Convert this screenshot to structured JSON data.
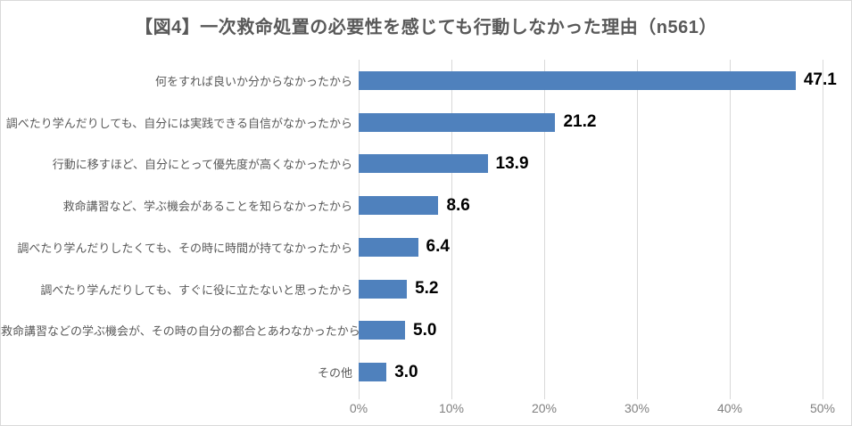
{
  "chart_data": {
    "type": "bar",
    "orientation": "horizontal",
    "title": "【図4】一次救命処置の必要性を感じても行動しなかった理由（n561）",
    "categories": [
      "何をすれば良いか分からなかったから",
      "調べたり学んだりしても、自分には実践できる自信がなかったから",
      "行動に移すほど、自分にとって優先度が高くなかったから",
      "救命講習など、学ぶ機会があることを知らなかったから",
      "調べたり学んだりしたくても、その時に時間が持てなかったから",
      "調べたり学んだりしても、すぐに役に立たないと思ったから",
      "救命講習などの学ぶ機会が、その時の自分の都合とあわなかったから",
      "その他"
    ],
    "values": [
      47.1,
      21.2,
      13.9,
      8.6,
      6.4,
      5.2,
      5.0,
      3.0
    ],
    "value_labels": [
      "47.1",
      "21.2",
      "13.9",
      "8.6",
      "6.4",
      "5.2",
      "5.0",
      "3.0"
    ],
    "xlabel": "",
    "ylabel": "",
    "xlim": [
      0,
      50
    ],
    "x_tick_labels": [
      "0%",
      "10%",
      "20%",
      "30%",
      "40%",
      "50%"
    ],
    "grid": true,
    "legend": false,
    "colors": {
      "bar": "#4F81BD",
      "title_text": "#595959",
      "category_text": "#595959",
      "value_text": "#000000",
      "axis_tick_text": "#808080",
      "gridline": "#D9D9D9",
      "figure_border": "#D9D9D9"
    }
  }
}
